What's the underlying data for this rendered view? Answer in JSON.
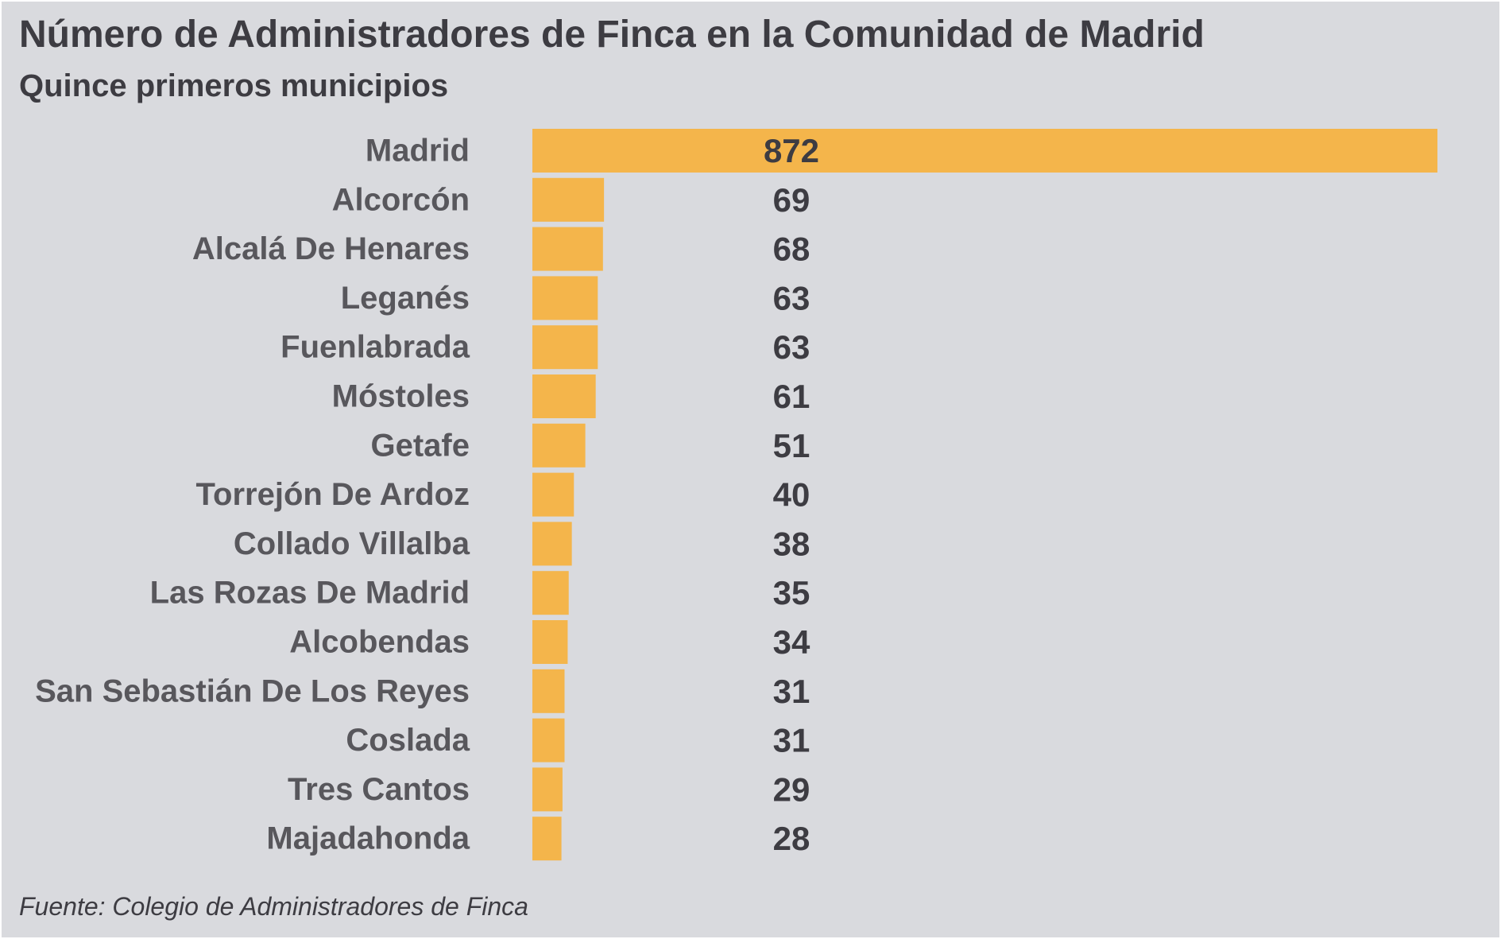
{
  "header": {
    "title": "Número de Administradores de Finca en la Comunidad de Madrid",
    "subtitle": "Quince primeros municipios"
  },
  "footer": {
    "source": "Fuente: Colegio de Administradores de Finca"
  },
  "colors": {
    "background": "#d9dade",
    "bar": "#f4b54b",
    "text_dark": "#3d3c42",
    "text_label": "#58575c"
  },
  "chart_data": {
    "type": "bar",
    "orientation": "horizontal",
    "title": "Número de Administradores de Finca en la Comunidad de Madrid",
    "subtitle": "Quince primeros municipios",
    "categories": [
      "Madrid",
      "Alcorcón",
      "Alcalá De Henares",
      "Leganés",
      "Fuenlabrada",
      "Móstoles",
      "Getafe",
      "Torrejón De Ardoz",
      "Collado Villalba",
      "Las Rozas De Madrid",
      "Alcobendas",
      "San Sebastián De Los Reyes",
      "Coslada",
      "Tres Cantos",
      "Majadahonda"
    ],
    "values": [
      872,
      69,
      68,
      63,
      63,
      61,
      51,
      40,
      38,
      35,
      34,
      31,
      31,
      29,
      28
    ],
    "xlim": [
      0,
      872
    ],
    "grid": false,
    "legend": "none",
    "source": "Fuente: Colegio de Administradores de Finca"
  }
}
